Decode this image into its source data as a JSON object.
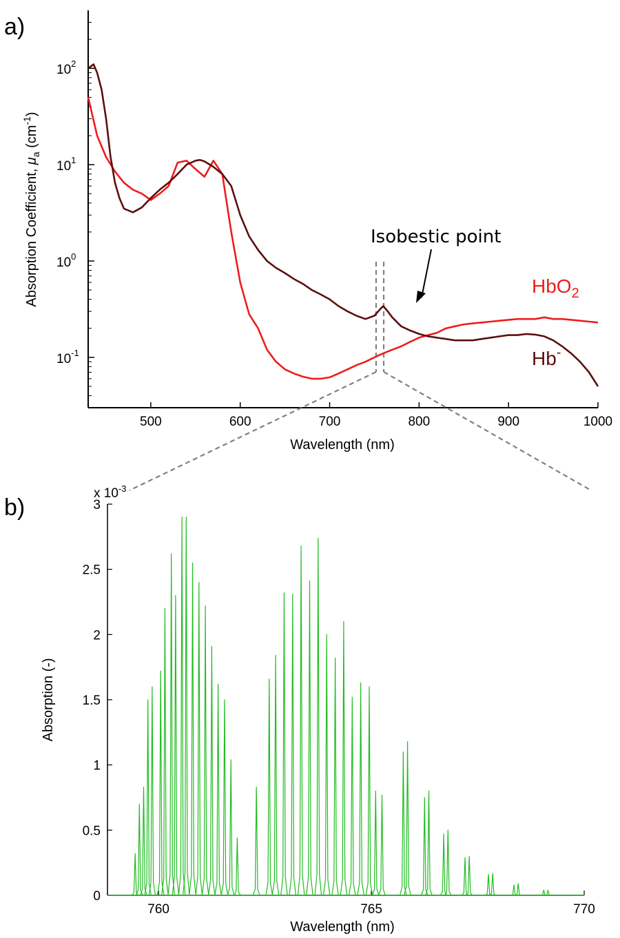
{
  "panels": {
    "a_label": "a)",
    "b_label": "b)"
  },
  "colors": {
    "hbo2": "#ee1c1c",
    "hb": "#5c0e0e",
    "o2": "#22bb22",
    "guide": "#808080"
  },
  "chart_data": [
    {
      "type": "line",
      "panel": "a",
      "xlabel": "Wavelength (nm)",
      "ylabel": "Absorption Coefficient, μa (cm-1)",
      "ylabel_parts": {
        "main": "Absorption Coefficient, ",
        "mu": "μ",
        "mu_sub": "a",
        "unit_open": " (cm",
        "unit_sup": "-1",
        "unit_close": ")"
      },
      "xlim": [
        430,
        1000
      ],
      "ylim": [
        0.03,
        400
      ],
      "yscale": "log",
      "xticks": [
        500,
        600,
        700,
        800,
        900,
        1000
      ],
      "yticks": [
        {
          "base": "10",
          "exp": "2",
          "value": 100
        },
        {
          "base": "10",
          "exp": "1",
          "value": 10
        },
        {
          "base": "10",
          "exp": "0",
          "value": 1
        },
        {
          "base": "10",
          "exp": "-1",
          "value": 0.1
        }
      ],
      "series": [
        {
          "name": "HbO2",
          "label_main": "HbO",
          "label_sub": "2",
          "color": "#ee1c1c",
          "x": [
            430,
            440,
            450,
            460,
            470,
            480,
            490,
            500,
            510,
            520,
            530,
            540,
            550,
            560,
            570,
            580,
            590,
            600,
            610,
            620,
            630,
            640,
            650,
            660,
            670,
            680,
            690,
            700,
            710,
            720,
            730,
            740,
            750,
            760,
            770,
            780,
            790,
            800,
            810,
            820,
            830,
            840,
            850,
            860,
            870,
            880,
            890,
            900,
            910,
            920,
            930,
            940,
            950,
            960,
            970,
            980,
            990,
            1000
          ],
          "y": [
            50,
            20,
            12,
            8.5,
            6.5,
            5.5,
            5.0,
            4.3,
            5.0,
            6.0,
            10.5,
            11.0,
            9.0,
            7.5,
            11.0,
            8.0,
            2.0,
            0.6,
            0.28,
            0.2,
            0.12,
            0.09,
            0.075,
            0.068,
            0.063,
            0.06,
            0.06,
            0.062,
            0.068,
            0.075,
            0.083,
            0.09,
            0.1,
            0.11,
            0.12,
            0.13,
            0.145,
            0.16,
            0.17,
            0.18,
            0.2,
            0.21,
            0.22,
            0.225,
            0.23,
            0.235,
            0.24,
            0.245,
            0.25,
            0.25,
            0.25,
            0.26,
            0.25,
            0.25,
            0.245,
            0.24,
            0.235,
            0.23
          ]
        },
        {
          "name": "Hb-",
          "label_main": "Hb",
          "label_sup": "-",
          "color": "#5c0e0e",
          "x": [
            430,
            436,
            440,
            445,
            450,
            455,
            460,
            465,
            470,
            480,
            490,
            500,
            510,
            520,
            530,
            540,
            550,
            555,
            560,
            570,
            580,
            590,
            600,
            610,
            620,
            630,
            640,
            650,
            660,
            670,
            680,
            690,
            700,
            710,
            720,
            730,
            740,
            750,
            757,
            760,
            765,
            770,
            780,
            790,
            800,
            810,
            820,
            830,
            840,
            850,
            860,
            870,
            880,
            890,
            900,
            910,
            920,
            930,
            940,
            950,
            960,
            970,
            980,
            990,
            1000
          ],
          "y": [
            100,
            110,
            90,
            60,
            30,
            12,
            6.5,
            4.5,
            3.5,
            3.2,
            3.6,
            4.5,
            5.5,
            6.5,
            8.0,
            10.0,
            11.0,
            11.2,
            10.8,
            9.5,
            8.0,
            6.0,
            3.0,
            1.8,
            1.3,
            1.0,
            0.85,
            0.75,
            0.65,
            0.58,
            0.5,
            0.45,
            0.4,
            0.34,
            0.3,
            0.27,
            0.25,
            0.27,
            0.32,
            0.34,
            0.3,
            0.26,
            0.21,
            0.19,
            0.175,
            0.165,
            0.16,
            0.155,
            0.15,
            0.15,
            0.15,
            0.155,
            0.16,
            0.165,
            0.17,
            0.17,
            0.175,
            0.172,
            0.165,
            0.15,
            0.13,
            0.11,
            0.09,
            0.07,
            0.05
          ]
        }
      ],
      "annotations": {
        "isobestic_label": "Isobestic point",
        "isobestic_x": 800,
        "isobestic_y": 0.17,
        "zoom_band_nm": [
          755,
          762
        ]
      }
    },
    {
      "type": "line",
      "panel": "b",
      "xlabel": "Wavelength (nm)",
      "ylabel": "Absorption (-)",
      "xlim": [
        758.8,
        770
      ],
      "ylim": [
        0,
        0.003
      ],
      "xticks": [
        760,
        765,
        770
      ],
      "yticks_labels": [
        "0",
        "0.5",
        "1",
        "1.5",
        "2",
        "2.5",
        "3"
      ],
      "ytick_values": [
        0,
        0.5,
        1,
        1.5,
        2,
        2.5,
        3
      ],
      "y_multiplier_text": {
        "x": "x 10",
        "exp": "-3"
      },
      "series": [
        {
          "name": "",
          "color": "#22bb22",
          "peak_half_width_nm": 0.012,
          "peaks_nm": [
            759.45,
            759.55,
            759.65,
            759.75,
            759.85,
            760.05,
            760.15,
            760.3,
            760.4,
            760.55,
            760.65,
            760.8,
            760.95,
            761.1,
            761.25,
            761.4,
            761.55,
            761.7,
            761.85,
            762.3,
            762.6,
            762.75,
            762.95,
            763.15,
            763.35,
            763.55,
            763.75,
            763.95,
            764.15,
            764.35,
            764.55,
            764.75,
            764.95,
            765.1,
            765.25,
            765.75,
            765.85,
            766.25,
            766.35,
            766.7,
            766.8,
            767.2,
            767.3,
            767.75,
            767.85,
            768.35,
            768.45,
            769.05,
            769.15
          ],
          "peak_values_e3": [
            0.32,
            0.7,
            0.83,
            1.5,
            1.6,
            1.72,
            2.2,
            2.62,
            2.3,
            2.9,
            2.9,
            2.55,
            2.4,
            2.22,
            1.91,
            1.62,
            1.5,
            1.04,
            0.44,
            0.83,
            1.66,
            1.84,
            2.32,
            2.31,
            2.68,
            2.41,
            2.74,
            2.0,
            1.82,
            2.1,
            1.52,
            1.63,
            1.6,
            0.8,
            0.77,
            1.1,
            1.18,
            0.75,
            0.8,
            0.47,
            0.5,
            0.29,
            0.3,
            0.16,
            0.17,
            0.08,
            0.09,
            0.04,
            0.04
          ]
        }
      ]
    }
  ]
}
